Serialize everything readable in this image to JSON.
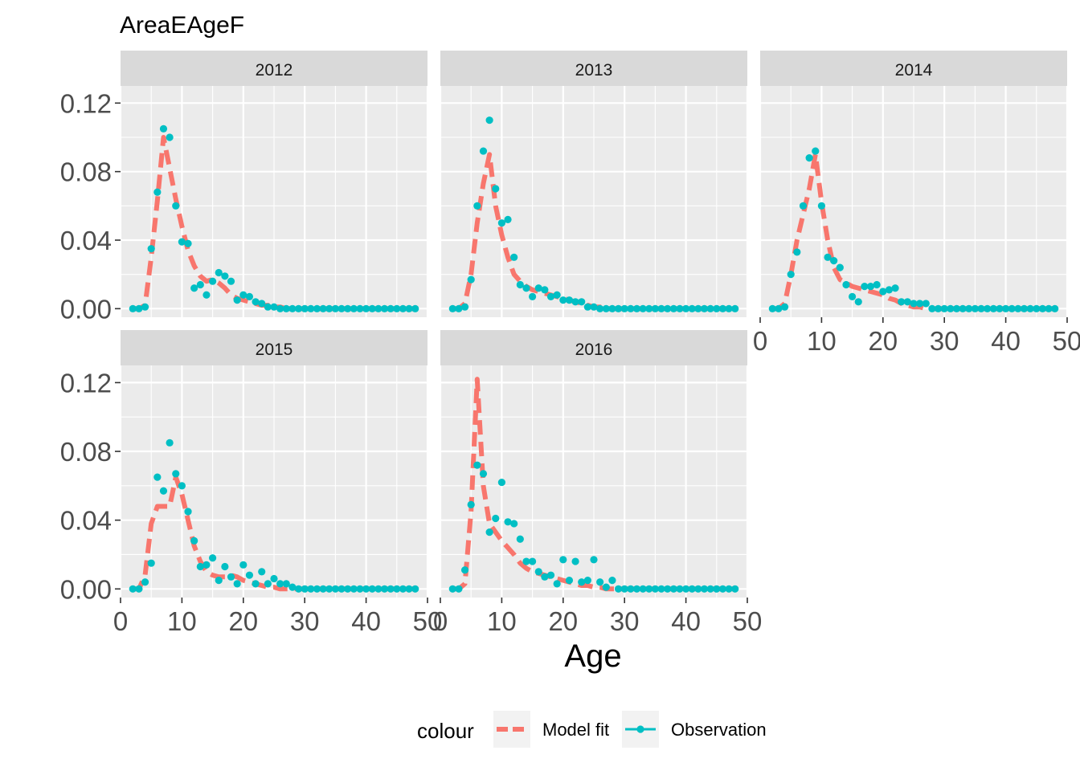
{
  "chart_data": {
    "type": "line",
    "title": "AreaEAgeF",
    "xlabel": "Age",
    "ylabel": "",
    "xlim": [
      0,
      50
    ],
    "ylim": [
      -0.005,
      0.13
    ],
    "x_ticks": [
      0,
      10,
      20,
      30,
      40,
      50
    ],
    "x_tick_labels": [
      "0",
      "10",
      "20",
      "30",
      "40",
      "50"
    ],
    "y_ticks": [
      0,
      0.04,
      0.08,
      0.12
    ],
    "y_tick_labels": [
      "0.00",
      "0.04",
      "0.08",
      "0.12"
    ],
    "legend": {
      "title": "colour",
      "position": "bottom",
      "entries": [
        {
          "name": "Model fit",
          "color": "#F8766D",
          "style": "dashed line"
        },
        {
          "name": "Observation",
          "color": "#00BFC4",
          "style": "points"
        }
      ]
    },
    "facets": [
      {
        "label": "2012",
        "x": [
          2,
          3,
          4,
          5,
          6,
          7,
          8,
          9,
          10,
          11,
          12,
          13,
          14,
          15,
          16,
          17,
          18,
          19,
          20,
          21,
          22,
          23,
          24,
          25,
          26,
          27,
          28,
          29,
          30,
          31,
          32,
          33,
          34,
          35,
          36,
          37,
          38,
          39,
          40,
          41,
          42,
          43,
          44,
          45,
          46,
          47,
          48
        ],
        "model": [
          0,
          0,
          0.002,
          0.03,
          0.063,
          0.1,
          0.082,
          0.064,
          0.048,
          0.034,
          0.025,
          0.019,
          0.016,
          0.017,
          0.015,
          0.012,
          0.008,
          0.006,
          0.005,
          0.004,
          0.003,
          0.002,
          0.002,
          0.001,
          0.001,
          0,
          0,
          0,
          0,
          0,
          0,
          0,
          0,
          0,
          0,
          0,
          0,
          0,
          0,
          0,
          0,
          0,
          0,
          0,
          0,
          0,
          0
        ],
        "observation": [
          0,
          0,
          0.001,
          0.035,
          0.068,
          0.105,
          0.1,
          0.06,
          0.039,
          0.038,
          0.012,
          0.014,
          0.008,
          0.016,
          0.021,
          0.019,
          0.016,
          0.005,
          0.008,
          0.007,
          0.004,
          0.003,
          0.001,
          0.001,
          0,
          0,
          0,
          0,
          0,
          0,
          0,
          0,
          0,
          0,
          0,
          0,
          0,
          0,
          0,
          0,
          0,
          0,
          0,
          0,
          0,
          0,
          0
        ]
      },
      {
        "label": "2013",
        "x": [
          2,
          3,
          4,
          5,
          6,
          7,
          8,
          9,
          10,
          11,
          12,
          13,
          14,
          15,
          16,
          17,
          18,
          19,
          20,
          21,
          22,
          23,
          24,
          25,
          26,
          27,
          28,
          29,
          30,
          31,
          32,
          33,
          34,
          35,
          36,
          37,
          38,
          39,
          40,
          41,
          42,
          43,
          44,
          45,
          46,
          47,
          48
        ],
        "model": [
          0,
          0,
          0.003,
          0.02,
          0.05,
          0.073,
          0.09,
          0.06,
          0.043,
          0.03,
          0.02,
          0.016,
          0.013,
          0.011,
          0.01,
          0.009,
          0.008,
          0.007,
          0.006,
          0.005,
          0.004,
          0.003,
          0.002,
          0.001,
          0.001,
          0,
          0,
          0,
          0,
          0,
          0,
          0,
          0,
          0,
          0,
          0,
          0,
          0,
          0,
          0,
          0,
          0,
          0,
          0,
          0,
          0,
          0
        ],
        "observation": [
          0,
          0,
          0.001,
          0.017,
          0.06,
          0.092,
          0.11,
          0.07,
          0.05,
          0.052,
          0.03,
          0.014,
          0.012,
          0.007,
          0.012,
          0.011,
          0.007,
          0.008,
          0.005,
          0.005,
          0.004,
          0.004,
          0.001,
          0.001,
          0,
          0,
          0,
          0,
          0,
          0,
          0,
          0,
          0,
          0,
          0,
          0,
          0,
          0,
          0,
          0,
          0,
          0,
          0,
          0,
          0,
          0,
          0
        ]
      },
      {
        "label": "2014",
        "x": [
          2,
          3,
          4,
          5,
          6,
          7,
          8,
          9,
          10,
          11,
          12,
          13,
          14,
          15,
          16,
          17,
          18,
          19,
          20,
          21,
          22,
          23,
          24,
          25,
          26,
          27,
          28,
          29,
          30,
          31,
          32,
          33,
          34,
          35,
          36,
          37,
          38,
          39,
          40,
          41,
          42,
          43,
          44,
          45,
          46,
          47,
          48
        ],
        "model": [
          0,
          0,
          0.003,
          0.02,
          0.04,
          0.055,
          0.07,
          0.09,
          0.062,
          0.04,
          0.024,
          0.017,
          0.015,
          0.013,
          0.012,
          0.011,
          0.01,
          0.009,
          0.008,
          0.006,
          0.005,
          0.003,
          0.002,
          0.001,
          0.001,
          0,
          0,
          0,
          0,
          0,
          0,
          0,
          0,
          0,
          0,
          0,
          0,
          0,
          0,
          0,
          0,
          0,
          0,
          0,
          0,
          0,
          0
        ],
        "observation": [
          0,
          0,
          0.001,
          0.02,
          0.033,
          0.06,
          0.088,
          0.092,
          0.06,
          0.03,
          0.028,
          0.024,
          0.014,
          0.007,
          0.004,
          0.013,
          0.013,
          0.014,
          0.01,
          0.011,
          0.012,
          0.004,
          0.004,
          0.003,
          0.003,
          0.003,
          0,
          0,
          0,
          0,
          0,
          0,
          0,
          0,
          0,
          0,
          0,
          0,
          0,
          0,
          0,
          0,
          0,
          0,
          0,
          0,
          0
        ]
      },
      {
        "label": "2015",
        "x": [
          2,
          3,
          4,
          5,
          6,
          7,
          8,
          9,
          10,
          11,
          12,
          13,
          14,
          15,
          16,
          17,
          18,
          19,
          20,
          21,
          22,
          23,
          24,
          25,
          26,
          27,
          28,
          29,
          30,
          31,
          32,
          33,
          34,
          35,
          36,
          37,
          38,
          39,
          40,
          41,
          42,
          43,
          44,
          45,
          46,
          47,
          48
        ],
        "model": [
          0,
          0,
          0.008,
          0.038,
          0.048,
          0.048,
          0.048,
          0.065,
          0.055,
          0.04,
          0.025,
          0.016,
          0.01,
          0.008,
          0.007,
          0.007,
          0.008,
          0.007,
          0.005,
          0.004,
          0.003,
          0.002,
          0.001,
          0.001,
          0,
          0,
          0,
          0,
          0,
          0,
          0,
          0,
          0,
          0,
          0,
          0,
          0,
          0,
          0,
          0,
          0,
          0,
          0,
          0,
          0,
          0,
          0
        ],
        "observation": [
          0,
          0,
          0.004,
          0.015,
          0.065,
          0.057,
          0.085,
          0.067,
          0.06,
          0.045,
          0.028,
          0.013,
          0.014,
          0.018,
          0.005,
          0.013,
          0.007,
          0.003,
          0.014,
          0.008,
          0.003,
          0.01,
          0.003,
          0.006,
          0.003,
          0.003,
          0.001,
          0,
          0,
          0,
          0,
          0,
          0,
          0,
          0,
          0,
          0,
          0,
          0,
          0,
          0,
          0,
          0,
          0,
          0,
          0,
          0
        ]
      },
      {
        "label": "2016",
        "x": [
          2,
          3,
          4,
          5,
          6,
          7,
          8,
          9,
          10,
          11,
          12,
          13,
          14,
          15,
          16,
          17,
          18,
          19,
          20,
          21,
          22,
          23,
          24,
          25,
          26,
          27,
          28,
          29,
          30,
          31,
          32,
          33,
          34,
          35,
          36,
          37,
          38,
          39,
          40,
          41,
          42,
          43,
          44,
          45,
          46,
          47,
          48
        ],
        "model": [
          0,
          0,
          0.003,
          0.045,
          0.122,
          0.06,
          0.038,
          0.033,
          0.028,
          0.024,
          0.02,
          0.015,
          0.012,
          0.01,
          0.009,
          0.008,
          0.007,
          0.006,
          0.005,
          0.004,
          0.003,
          0.002,
          0.002,
          0.001,
          0.001,
          0,
          0,
          0,
          0,
          0,
          0,
          0,
          0,
          0,
          0,
          0,
          0,
          0,
          0,
          0,
          0,
          0,
          0,
          0,
          0,
          0,
          0
        ],
        "observation": [
          0,
          0,
          0.011,
          0.049,
          0.072,
          0.067,
          0.033,
          0.041,
          0.062,
          0.039,
          0.038,
          0.029,
          0.016,
          0.016,
          0.01,
          0.007,
          0.008,
          0.003,
          0.017,
          0.005,
          0.016,
          0.004,
          0.005,
          0.017,
          0.004,
          0.001,
          0.005,
          0,
          0,
          0,
          0,
          0,
          0,
          0,
          0,
          0,
          0,
          0,
          0,
          0,
          0,
          0,
          0,
          0,
          0,
          0,
          0
        ]
      }
    ]
  }
}
